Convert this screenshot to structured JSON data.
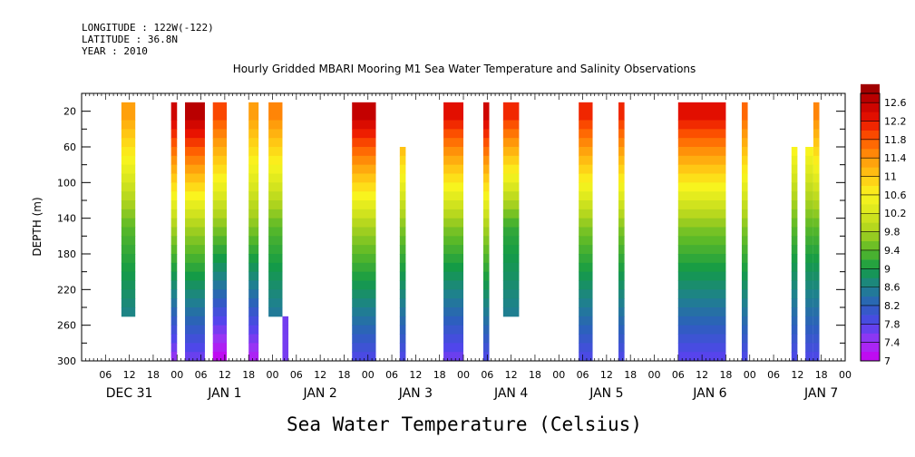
{
  "header": {
    "longitude": "LONGITUDE : 122W(-122)",
    "latitude": "LATITUDE : 36.8N",
    "year": "YEAR : 2010",
    "title": "Hourly Gridded MBARI Mooring M1 Sea Water Temperature and Salinity Observations"
  },
  "footer": {
    "variable_label": "Sea Water Temperature (Celsius)"
  },
  "chart_data": {
    "type": "heatmap",
    "title": "Hourly Gridded MBARI Mooring M1 Sea Water Temperature and Salinity Observations",
    "xlabel": "",
    "ylabel": "DEPTH (m)",
    "y_reversed": true,
    "ylim": [
      300,
      0
    ],
    "y_ticks": [
      20,
      60,
      100,
      140,
      180,
      220,
      260,
      300
    ],
    "xlim_hours": [
      0,
      192
    ],
    "x_hour_ticks": [
      "06",
      "12",
      "18",
      "00",
      "06",
      "12",
      "18",
      "00",
      "06",
      "12",
      "18",
      "00",
      "06",
      "12",
      "18",
      "00",
      "06",
      "12",
      "18",
      "00",
      "06",
      "12",
      "18",
      "00",
      "06",
      "12",
      "18",
      "00",
      "06",
      "12",
      "18",
      "00"
    ],
    "x_day_labels": [
      "DEC 31",
      "JAN  1",
      "JAN  2",
      "JAN  3",
      "JAN  4",
      "JAN  5",
      "JAN  6",
      "JAN  7"
    ],
    "colorbar": {
      "levels": [
        12.6,
        12.2,
        11.8,
        11.4,
        11,
        10.6,
        10.2,
        9.8,
        9.4,
        9,
        8.6,
        8.2,
        7.8,
        7.4,
        7
      ],
      "vmin": 7,
      "vmax": 12.8
    },
    "segments": [
      {
        "start": 10,
        "end": 13.5,
        "top": 20,
        "bottom": 250,
        "t_top": 11.4,
        "t_mid": 9.4,
        "t_bottom": 8.2
      },
      {
        "start": 22.5,
        "end": 24,
        "top": 20,
        "bottom": 300,
        "t_top": 12.6,
        "t_mid": 9.8,
        "t_bottom": 7.4
      },
      {
        "start": 26,
        "end": 31,
        "top": 20,
        "bottom": 300,
        "t_top": 12.8,
        "t_mid": 9.8,
        "t_bottom": 7.6
      },
      {
        "start": 33,
        "end": 36.5,
        "top": 20,
        "bottom": 300,
        "t_top": 12.0,
        "t_mid": 9.6,
        "t_bottom": 7.0
      },
      {
        "start": 42,
        "end": 44.5,
        "top": 20,
        "bottom": 300,
        "t_top": 11.4,
        "t_mid": 9.6,
        "t_bottom": 7.2
      },
      {
        "start": 47,
        "end": 50.5,
        "top": 20,
        "bottom": 250,
        "t_top": 11.6,
        "t_mid": 9.4,
        "t_bottom": 8.0
      },
      {
        "start": 50.5,
        "end": 52,
        "top": 250,
        "bottom": 300,
        "t_top": 7.8,
        "t_mid": 7.7,
        "t_bottom": 7.6
      },
      {
        "start": 68,
        "end": 74,
        "top": 20,
        "bottom": 300,
        "t_top": 12.7,
        "t_mid": 9.8,
        "t_bottom": 7.8
      },
      {
        "start": 80,
        "end": 81.5,
        "top": 60,
        "bottom": 300,
        "t_top": 11.8,
        "t_mid": 9.6,
        "t_bottom": 7.8
      },
      {
        "start": 91,
        "end": 96,
        "top": 20,
        "bottom": 300,
        "t_top": 12.4,
        "t_mid": 9.6,
        "t_bottom": 7.6
      },
      {
        "start": 101,
        "end": 102.5,
        "top": 20,
        "bottom": 300,
        "t_top": 12.6,
        "t_mid": 9.8,
        "t_bottom": 7.8
      },
      {
        "start": 106,
        "end": 110,
        "top": 20,
        "bottom": 250,
        "t_top": 12.2,
        "t_mid": 9.2,
        "t_bottom": 8.2
      },
      {
        "start": 125,
        "end": 128.5,
        "top": 20,
        "bottom": 300,
        "t_top": 12.2,
        "t_mid": 9.6,
        "t_bottom": 7.8
      },
      {
        "start": 135,
        "end": 136.5,
        "top": 20,
        "bottom": 300,
        "t_top": 12.2,
        "t_mid": 9.6,
        "t_bottom": 7.8
      },
      {
        "start": 150,
        "end": 162,
        "top": 20,
        "bottom": 300,
        "t_top": 12.4,
        "t_mid": 9.6,
        "t_bottom": 7.7
      },
      {
        "start": 166,
        "end": 167.5,
        "top": 20,
        "bottom": 300,
        "t_top": 11.8,
        "t_mid": 9.6,
        "t_bottom": 7.8
      },
      {
        "start": 178.5,
        "end": 180,
        "top": 60,
        "bottom": 300,
        "t_top": 11.2,
        "t_mid": 9.4,
        "t_bottom": 7.8
      },
      {
        "start": 182,
        "end": 184,
        "top": 60,
        "bottom": 300,
        "t_top": 11.2,
        "t_mid": 9.4,
        "t_bottom": 7.8
      },
      {
        "start": 184,
        "end": 185.5,
        "top": 20,
        "bottom": 300,
        "t_top": 11.6,
        "t_mid": 9.4,
        "t_bottom": 7.8
      }
    ]
  }
}
